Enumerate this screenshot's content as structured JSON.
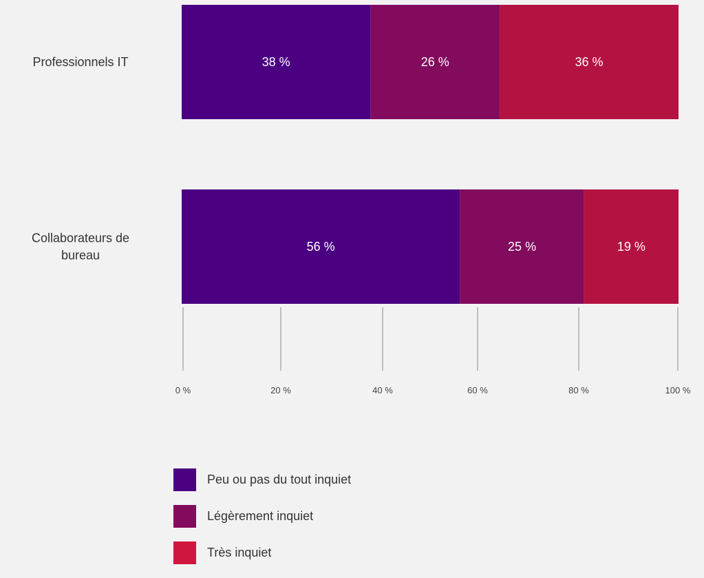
{
  "chart_data": {
    "type": "bar",
    "orientation": "horizontal",
    "stacked": true,
    "categories": [
      [
        "Professionnels IT"
      ],
      [
        "Collaborateurs de",
        "bureau"
      ]
    ],
    "series": [
      {
        "name": "Peu ou pas du tout inquiet",
        "color": "#4b0082",
        "values": [
          38,
          56
        ],
        "labels": [
          "38 %",
          "56 %"
        ]
      },
      {
        "name": "Légèrement inquiet",
        "color": "#820b5e",
        "values": [
          26,
          25
        ],
        "labels": [
          "26 %",
          "25 %"
        ]
      },
      {
        "name": "Très inquiet",
        "color": "#b41341",
        "values": [
          36,
          19
        ],
        "labels": [
          "36 %",
          "19 %"
        ]
      }
    ],
    "xlim": [
      0,
      100
    ],
    "ticks": [
      0,
      20,
      40,
      60,
      80,
      100
    ],
    "tick_labels": [
      "0 %",
      "20 %",
      "40 %",
      "60 %",
      "80 %",
      "100 %"
    ],
    "grid": false,
    "legend_position": "bottom",
    "legend": [
      {
        "label": "Peu ou pas du tout inquiet",
        "color": "#4b0082"
      },
      {
        "label": "Légèrement inquiet",
        "color": "#820b5e"
      },
      {
        "label": "Très inquiet",
        "color": "#d0163e"
      }
    ]
  }
}
